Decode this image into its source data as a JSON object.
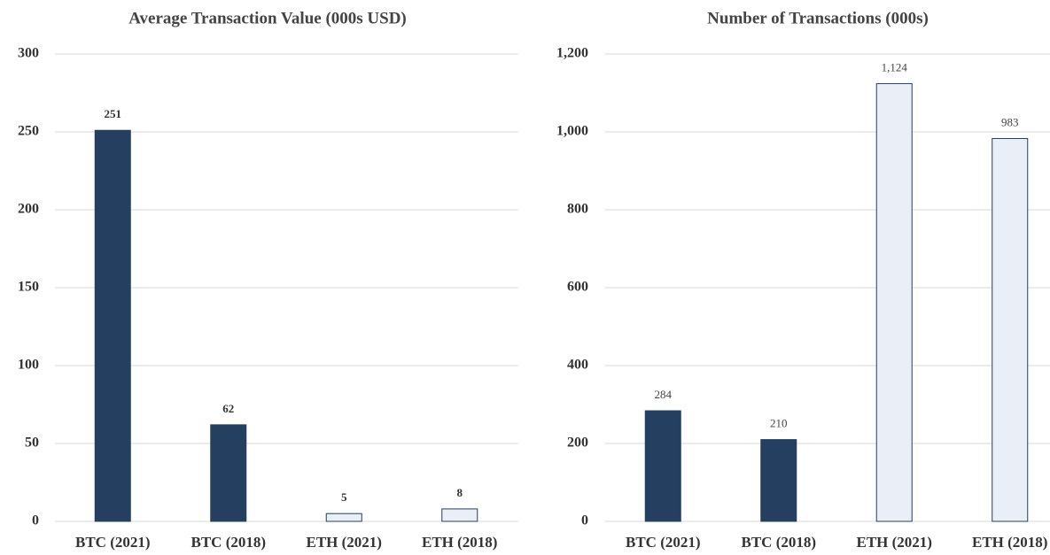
{
  "chart_data": [
    {
      "type": "bar",
      "title": "Average Transaction Value (000s USD)",
      "categories": [
        "BTC (2021)",
        "BTC (2018)",
        "ETH (2021)",
        "ETH (2018)"
      ],
      "values": [
        251,
        62,
        5,
        8
      ],
      "colors": [
        "#243f60",
        "#243f60",
        "#e9eef7",
        "#e9eef7"
      ],
      "edgecolor": "#243f60",
      "ylim": [
        0,
        300
      ],
      "yticks": [
        0,
        50,
        100,
        150,
        200,
        250,
        300
      ],
      "grid": true
    },
    {
      "type": "bar",
      "title": "Number of Transactions (000s)",
      "categories": [
        "BTC (2021)",
        "BTC (2018)",
        "ETH (2021)",
        "ETH (2018)"
      ],
      "values": [
        284,
        210,
        1124,
        983
      ],
      "value_labels": [
        "284",
        "210",
        "1,124",
        "983"
      ],
      "colors": [
        "#243f60",
        "#243f60",
        "#e9eef7",
        "#e9eef7"
      ],
      "edgecolor": "#243f60",
      "ylim": [
        0,
        1200
      ],
      "yticks": [
        0,
        200,
        400,
        600,
        800,
        {
          "value": 1000,
          "label": "1,000"
        },
        {
          "value": 1200,
          "label": "1,200"
        }
      ],
      "grid": true
    }
  ]
}
